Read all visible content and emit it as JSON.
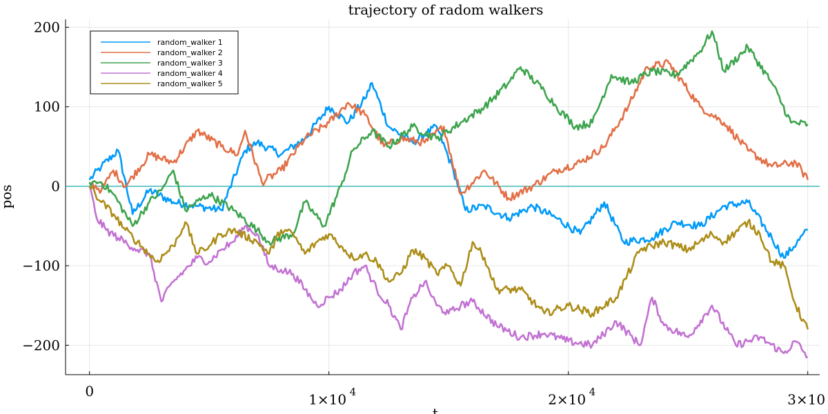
{
  "chart_data": {
    "type": "line",
    "title": "trajectory of radom walkers",
    "xlabel": "t",
    "ylabel": "pos",
    "xlim": [
      -1000,
      30500
    ],
    "ylim": [
      -237,
      210
    ],
    "grid": true,
    "legend_position": "top-left",
    "x_ticks": [
      {
        "value": 0,
        "label": "0",
        "exponent": ""
      },
      {
        "value": 10000,
        "label": "1×10",
        "exponent": "4"
      },
      {
        "value": 20000,
        "label": "2×10",
        "exponent": "4"
      },
      {
        "value": 30000,
        "label": "3×10",
        "exponent": "4"
      }
    ],
    "y_ticks": [
      {
        "value": -200,
        "label": "−200"
      },
      {
        "value": -100,
        "label": "−100"
      },
      {
        "value": 0,
        "label": "0"
      },
      {
        "value": 100,
        "label": "100"
      },
      {
        "value": 200,
        "label": "200"
      }
    ],
    "reference_line": {
      "y": 0,
      "color": "#3fb5b5"
    },
    "series": [
      {
        "name": "random_walker 1",
        "color": "#009af9",
        "x": [
          0,
          500,
          1200,
          1800,
          2500,
          3500,
          4500,
          5500,
          6500,
          7000,
          8000,
          9000,
          10000,
          10800,
          11500,
          11800,
          12500,
          13500,
          14500,
          15200,
          15700,
          16500,
          17500,
          18500,
          19500,
          20500,
          21500,
          22300,
          23500,
          24500,
          25500,
          26500,
          27500,
          28500,
          29000,
          30000
        ],
        "y": [
          8,
          25,
          45,
          -35,
          -5,
          -20,
          -25,
          -30,
          45,
          55,
          40,
          60,
          100,
          80,
          110,
          130,
          75,
          55,
          75,
          20,
          -30,
          -25,
          -40,
          -25,
          -40,
          -60,
          -20,
          -70,
          -65,
          -45,
          -50,
          -25,
          -20,
          -65,
          -90,
          -55
        ]
      },
      {
        "name": "random_walker 2",
        "color": "#e26f46",
        "x": [
          0,
          500,
          1000,
          1500,
          2500,
          3500,
          4500,
          5500,
          6200,
          6500,
          7200,
          8000,
          9000,
          10000,
          10800,
          11500,
          12300,
          13000,
          14000,
          14800,
          15500,
          16500,
          17500,
          18500,
          19500,
          20500,
          21500,
          22500,
          23300,
          24200,
          25500,
          26500,
          27500,
          28500,
          29500,
          30000
        ],
        "y": [
          5,
          -5,
          20,
          0,
          40,
          30,
          70,
          50,
          40,
          70,
          5,
          20,
          60,
          80,
          105,
          90,
          50,
          60,
          55,
          75,
          -10,
          20,
          -15,
          0,
          20,
          30,
          50,
          100,
          150,
          155,
          100,
          80,
          45,
          25,
          30,
          8
        ]
      },
      {
        "name": "random_walker 3",
        "color": "#3da44d",
        "x": [
          0,
          500,
          1000,
          1800,
          2500,
          3000,
          3500,
          4000,
          5000,
          6000,
          7000,
          7500,
          8500,
          9000,
          9800,
          10500,
          11000,
          11800,
          12500,
          13500,
          14500,
          15500,
          16500,
          17500,
          18000,
          19000,
          19500,
          20300,
          21000,
          21800,
          22600,
          23500,
          24500,
          25500,
          26000,
          26500,
          27500,
          28500,
          29300,
          30000
        ],
        "y": [
          5,
          5,
          -10,
          -50,
          -20,
          -5,
          20,
          -30,
          -10,
          -30,
          -55,
          -70,
          -60,
          -20,
          -50,
          0,
          45,
          70,
          50,
          75,
          60,
          80,
          100,
          130,
          150,
          120,
          100,
          75,
          80,
          140,
          130,
          145,
          140,
          170,
          195,
          145,
          175,
          130,
          80,
          78
        ]
      },
      {
        "name": "random_walker 4",
        "color": "#c271d2",
        "x": [
          0,
          300,
          700,
          1200,
          2000,
          2500,
          3000,
          3500,
          4000,
          4500,
          5000,
          5500,
          6000,
          6500,
          7000,
          7500,
          8000,
          8500,
          9000,
          9500,
          10000,
          10500,
          11000,
          11500,
          12000,
          12500,
          13000,
          13500,
          14000,
          14500,
          15000,
          15500,
          16000,
          17000,
          18000,
          19000,
          20000,
          21000,
          22000,
          23000,
          23500,
          24000,
          25000,
          26000,
          27000,
          28000,
          29000,
          29500,
          30000
        ],
        "y": [
          0,
          -40,
          -55,
          -65,
          -80,
          -85,
          -145,
          -120,
          -105,
          -90,
          -95,
          -80,
          -70,
          -50,
          -60,
          -100,
          -105,
          -110,
          -130,
          -150,
          -140,
          -130,
          -110,
          -100,
          -130,
          -150,
          -180,
          -140,
          -120,
          -150,
          -160,
          -150,
          -145,
          -175,
          -190,
          -185,
          -195,
          -200,
          -170,
          -200,
          -140,
          -175,
          -190,
          -150,
          -200,
          -190,
          -210,
          -195,
          -215
        ]
      },
      {
        "name": "random_walker 5",
        "color": "#ac8d18",
        "x": [
          0,
          500,
          1000,
          1500,
          2000,
          2800,
          3500,
          4000,
          4500,
          5000,
          5500,
          6000,
          7000,
          7500,
          8000,
          8500,
          9000,
          9500,
          10000,
          10500,
          11000,
          11500,
          12000,
          12500,
          13000,
          13500,
          14000,
          14500,
          15000,
          15500,
          16000,
          16500,
          17000,
          18000,
          19000,
          20000,
          21000,
          22000,
          23000,
          24000,
          25000,
          26000,
          26500,
          27500,
          28000,
          28500,
          29000,
          29500,
          30000
        ],
        "y": [
          0,
          -20,
          -35,
          -55,
          -70,
          -95,
          -75,
          -45,
          -85,
          -75,
          -60,
          -55,
          -70,
          -85,
          -55,
          -60,
          -85,
          -70,
          -60,
          -75,
          -90,
          -85,
          -95,
          -120,
          -110,
          -80,
          -90,
          -110,
          -100,
          -125,
          -70,
          -90,
          -130,
          -130,
          -160,
          -150,
          -160,
          -140,
          -80,
          -70,
          -80,
          -60,
          -70,
          -45,
          -60,
          -95,
          -100,
          -150,
          -180
        ]
      }
    ]
  }
}
